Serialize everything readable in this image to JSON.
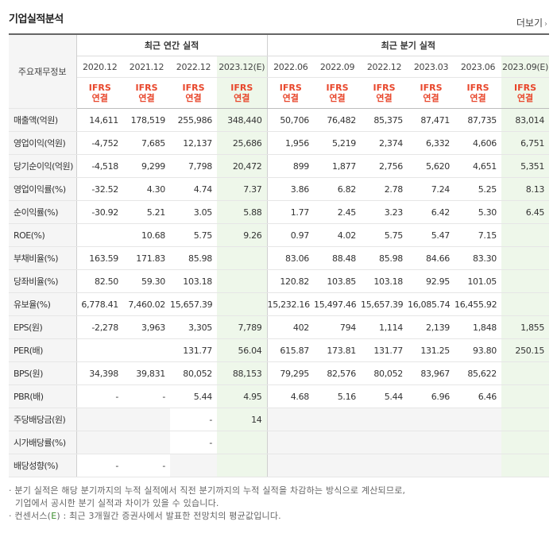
{
  "title": "기업실적분석",
  "more_label": "더보기",
  "header": {
    "row_label": "주요재무정보",
    "annual_group": "최근 연간 실적",
    "quarter_group": "최근 분기 실적",
    "periods": [
      "2020.12",
      "2021.12",
      "2022.12",
      "2023.12(E)",
      "2022.06",
      "2022.09",
      "2022.12",
      "2023.03",
      "2023.06",
      "2023.09(E)"
    ],
    "ifrs": "IFRS",
    "consolidated": "연결"
  },
  "rows": [
    {
      "label": "매출액(억원)",
      "values": [
        "14,611",
        "178,519",
        "255,986",
        "348,440",
        "50,706",
        "76,482",
        "85,375",
        "87,471",
        "87,735",
        "83,014"
      ]
    },
    {
      "label": "영업이익(억원)",
      "values": [
        "-4,752",
        "7,685",
        "12,137",
        "25,686",
        "1,956",
        "5,219",
        "2,374",
        "6,332",
        "4,606",
        "6,751"
      ]
    },
    {
      "label": "당기순이익(억원)",
      "values": [
        "-4,518",
        "9,299",
        "7,798",
        "20,472",
        "899",
        "1,877",
        "2,756",
        "5,620",
        "4,651",
        "5,351"
      ]
    },
    {
      "label": "영업이익률(%)",
      "values": [
        "-32.52",
        "4.30",
        "4.74",
        "7.37",
        "3.86",
        "6.82",
        "2.78",
        "7.24",
        "5.25",
        "8.13"
      ]
    },
    {
      "label": "순이익률(%)",
      "values": [
        "-30.92",
        "5.21",
        "3.05",
        "5.88",
        "1.77",
        "2.45",
        "3.23",
        "6.42",
        "5.30",
        "6.45"
      ]
    },
    {
      "label": "ROE(%)",
      "values": [
        "",
        "10.68",
        "5.75",
        "9.26",
        "0.97",
        "4.02",
        "5.75",
        "5.47",
        "7.15",
        ""
      ]
    },
    {
      "label": "부채비율(%)",
      "values": [
        "163.59",
        "171.83",
        "85.98",
        "",
        "83.06",
        "88.48",
        "85.98",
        "84.66",
        "83.30",
        ""
      ]
    },
    {
      "label": "당좌비율(%)",
      "values": [
        "82.50",
        "59.30",
        "103.18",
        "",
        "120.82",
        "103.85",
        "103.18",
        "92.95",
        "101.05",
        ""
      ]
    },
    {
      "label": "유보율(%)",
      "values": [
        "6,778.41",
        "7,460.02",
        "15,657.39",
        "",
        "15,232.16",
        "15,497.46",
        "15,657.39",
        "16,085.74",
        "16,455.92",
        ""
      ]
    },
    {
      "label": "EPS(원)",
      "values": [
        "-2,278",
        "3,963",
        "3,305",
        "7,789",
        "402",
        "794",
        "1,114",
        "2,139",
        "1,848",
        "1,855"
      ]
    },
    {
      "label": "PER(배)",
      "values": [
        "",
        "",
        "131.77",
        "56.04",
        "615.87",
        "173.81",
        "131.77",
        "131.25",
        "93.80",
        "250.15"
      ]
    },
    {
      "label": "BPS(원)",
      "values": [
        "34,398",
        "39,831",
        "80,052",
        "88,153",
        "79,295",
        "82,576",
        "80,052",
        "83,967",
        "85,622",
        ""
      ]
    },
    {
      "label": "PBR(배)",
      "values": [
        "-",
        "-",
        "5.44",
        "4.95",
        "4.68",
        "5.16",
        "5.44",
        "6.96",
        "6.46",
        ""
      ]
    },
    {
      "label": "주당배당금(원)",
      "values": [
        "",
        "",
        "-",
        "14",
        "",
        "",
        "",
        "",
        "",
        ""
      ]
    },
    {
      "label": "시가배당률(%)",
      "values": [
        "",
        "",
        "-",
        "",
        "",
        "",
        "",
        "",
        "",
        ""
      ]
    },
    {
      "label": "배당성향(%)",
      "values": [
        "-",
        "-",
        "",
        "",
        "",
        "",
        "",
        "",
        "",
        ""
      ]
    }
  ],
  "notes": {
    "line1": "분기 실적은 해당 분기까지의 누적 실적에서 직전 분기까지의 누적 실적을 차감하는 방식으로 계산되므로,",
    "line2": "기업에서 공시한 분기 실적과 차이가 있을 수 있습니다.",
    "line3_pre": "컨센서스(",
    "line3_e": "E",
    "line3_post": ") : 최근 3개월간 증권사에서 발표한 전망치의 평균값입니다.",
    "bullet": "·"
  }
}
